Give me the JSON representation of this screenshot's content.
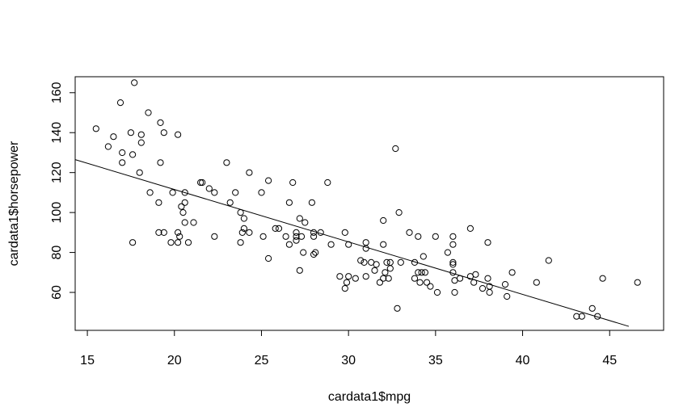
{
  "chart_data": {
    "type": "scatter",
    "title": "",
    "xlabel": "cardata1$mpg",
    "ylabel": "cardata1$horsepower",
    "xlim": [
      14.3,
      48.1
    ],
    "ylim": [
      41,
      168
    ],
    "xticks": [
      15,
      20,
      25,
      30,
      35,
      40,
      45
    ],
    "yticks": [
      60,
      80,
      100,
      120,
      140,
      160
    ],
    "grid": false,
    "legend": "none",
    "marker": "open-circle",
    "colors": {
      "point": "#000000",
      "line": "#000000",
      "axis": "#000000",
      "background": "#ffffff"
    },
    "regression_line": {
      "x": [
        14.3,
        46.1
      ],
      "y": [
        126.5,
        43
      ]
    },
    "points": [
      [
        15.5,
        142
      ],
      [
        16.2,
        133
      ],
      [
        16.5,
        138
      ],
      [
        16.9,
        155
      ],
      [
        17.0,
        125
      ],
      [
        17.0,
        130
      ],
      [
        17.5,
        140
      ],
      [
        17.6,
        129
      ],
      [
        17.6,
        85
      ],
      [
        17.7,
        165
      ],
      [
        18.0,
        120
      ],
      [
        18.1,
        139
      ],
      [
        18.1,
        135
      ],
      [
        18.5,
        150
      ],
      [
        18.6,
        110
      ],
      [
        19.1,
        90
      ],
      [
        19.1,
        105
      ],
      [
        19.2,
        145
      ],
      [
        19.2,
        125
      ],
      [
        19.4,
        140
      ],
      [
        19.4,
        90
      ],
      [
        19.8,
        85
      ],
      [
        19.9,
        110
      ],
      [
        20.2,
        139
      ],
      [
        20.2,
        90
      ],
      [
        20.2,
        85
      ],
      [
        20.3,
        88
      ],
      [
        20.4,
        103
      ],
      [
        20.5,
        100
      ],
      [
        20.6,
        95
      ],
      [
        20.6,
        105
      ],
      [
        20.6,
        110
      ],
      [
        20.8,
        85
      ],
      [
        21.1,
        95
      ],
      [
        21.5,
        115
      ],
      [
        21.6,
        115
      ],
      [
        22.0,
        112
      ],
      [
        22.3,
        110
      ],
      [
        22.3,
        88
      ],
      [
        23.0,
        125
      ],
      [
        23.2,
        105
      ],
      [
        23.5,
        110
      ],
      [
        23.8,
        100
      ],
      [
        23.8,
        85
      ],
      [
        23.9,
        90
      ],
      [
        24.0,
        97
      ],
      [
        24.0,
        92
      ],
      [
        24.3,
        120
      ],
      [
        24.3,
        90
      ],
      [
        25.0,
        110
      ],
      [
        25.1,
        88
      ],
      [
        25.4,
        116
      ],
      [
        25.4,
        77
      ],
      [
        25.8,
        92
      ],
      [
        26.0,
        92
      ],
      [
        26.4,
        88
      ],
      [
        26.6,
        105
      ],
      [
        26.6,
        84
      ],
      [
        26.8,
        115
      ],
      [
        27.0,
        90
      ],
      [
        27.0,
        88
      ],
      [
        27.0,
        86
      ],
      [
        27.2,
        97
      ],
      [
        27.2,
        71
      ],
      [
        27.3,
        88
      ],
      [
        27.4,
        80
      ],
      [
        27.5,
        95
      ],
      [
        27.9,
        105
      ],
      [
        28.0,
        88
      ],
      [
        28.0,
        90
      ],
      [
        28.0,
        79
      ],
      [
        28.1,
        80
      ],
      [
        28.4,
        90
      ],
      [
        28.8,
        115
      ],
      [
        29.0,
        84
      ],
      [
        29.5,
        68
      ],
      [
        29.8,
        90
      ],
      [
        29.8,
        62
      ],
      [
        29.9,
        65
      ],
      [
        30.0,
        68
      ],
      [
        30.0,
        84
      ],
      [
        30.4,
        67
      ],
      [
        30.7,
        76
      ],
      [
        30.9,
        75
      ],
      [
        31.0,
        82
      ],
      [
        31.0,
        68
      ],
      [
        31.0,
        85
      ],
      [
        31.3,
        75
      ],
      [
        31.5,
        71
      ],
      [
        31.6,
        74
      ],
      [
        31.8,
        65
      ],
      [
        32.0,
        96
      ],
      [
        32.0,
        84
      ],
      [
        32.0,
        67
      ],
      [
        32.1,
        70
      ],
      [
        32.2,
        75
      ],
      [
        32.3,
        67
      ],
      [
        32.4,
        72
      ],
      [
        32.4,
        75
      ],
      [
        32.7,
        132
      ],
      [
        32.8,
        52
      ],
      [
        32.9,
        100
      ],
      [
        33.0,
        75
      ],
      [
        33.5,
        90
      ],
      [
        33.8,
        75
      ],
      [
        33.8,
        67
      ],
      [
        34.0,
        70
      ],
      [
        34.0,
        88
      ],
      [
        34.1,
        65
      ],
      [
        34.2,
        70
      ],
      [
        34.3,
        78
      ],
      [
        34.4,
        70
      ],
      [
        34.5,
        65
      ],
      [
        34.7,
        63
      ],
      [
        35.0,
        88
      ],
      [
        35.1,
        60
      ],
      [
        35.7,
        80
      ],
      [
        36.0,
        88
      ],
      [
        36.0,
        84
      ],
      [
        36.0,
        75
      ],
      [
        36.0,
        74
      ],
      [
        36.0,
        70
      ],
      [
        36.1,
        60
      ],
      [
        36.1,
        66
      ],
      [
        36.4,
        67
      ],
      [
        37.0,
        92
      ],
      [
        37.0,
        68
      ],
      [
        37.2,
        65
      ],
      [
        37.3,
        69
      ],
      [
        37.7,
        62
      ],
      [
        38.0,
        85
      ],
      [
        38.0,
        67
      ],
      [
        38.1,
        63
      ],
      [
        38.1,
        60
      ],
      [
        39.0,
        64
      ],
      [
        39.1,
        58
      ],
      [
        39.4,
        70
      ],
      [
        40.8,
        65
      ],
      [
        41.5,
        76
      ],
      [
        43.1,
        48
      ],
      [
        43.4,
        48
      ],
      [
        44.0,
        52
      ],
      [
        44.3,
        48
      ],
      [
        44.6,
        67
      ],
      [
        46.6,
        65
      ]
    ]
  }
}
